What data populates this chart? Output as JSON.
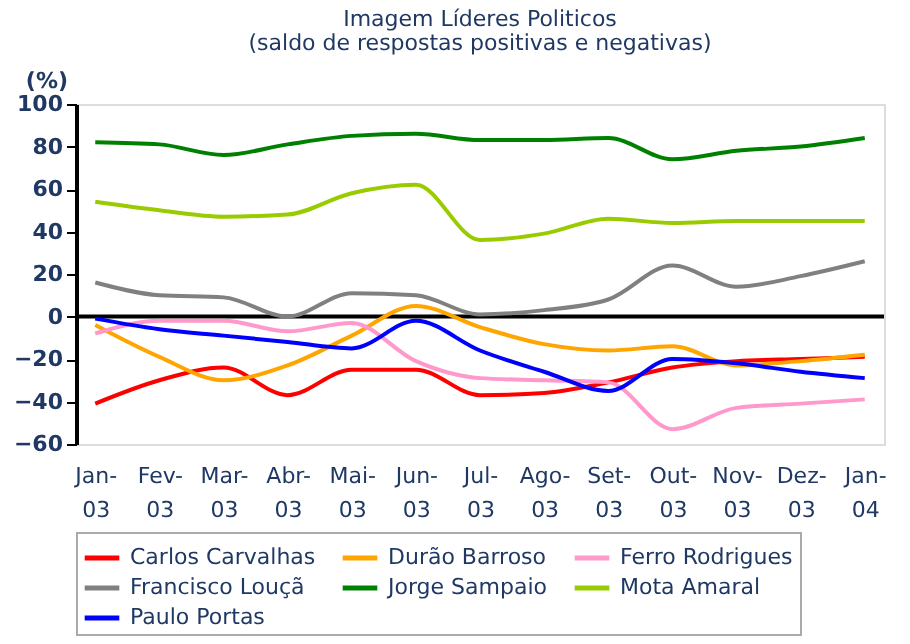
{
  "chart_data": {
    "type": "line",
    "title": "Imagem Líderes Politicos",
    "subtitle": "(saldo de respostas positivas e negativas)",
    "ylabel": "(%)",
    "categories": [
      "Jan-03",
      "Fev-03",
      "Mar-03",
      "Abr-03",
      "Mai-03",
      "Jun-03",
      "Jul-03",
      "Ago-03",
      "Set-03",
      "Out-03",
      "Nov-03",
      "Dez-03",
      "Jan-04"
    ],
    "series": [
      {
        "name": "Carlos Carvalhas",
        "color": "#ff0000",
        "values": [
          -41,
          -30,
          -24,
          -37,
          -25,
          -25,
          -37,
          -36,
          -31,
          -24,
          -21,
          -20,
          -19
        ]
      },
      {
        "name": "Durão Barroso",
        "color": "#ffa500",
        "values": [
          -4,
          -19,
          -30,
          -23,
          -9,
          5,
          -5,
          -13,
          -16,
          -14,
          -23,
          -21,
          -18
        ]
      },
      {
        "name": "Ferro Rodrigues",
        "color": "#ff99cc",
        "values": [
          -8,
          -2,
          -2,
          -7,
          -3,
          -21,
          -29,
          -30,
          -31,
          -53,
          -43,
          -41,
          -39
        ]
      },
      {
        "name": "Francisco Louçã",
        "color": "#808080",
        "values": [
          16,
          10,
          9,
          0,
          11,
          10,
          1,
          3,
          8,
          24,
          14,
          19,
          26
        ]
      },
      {
        "name": "Jorge Sampaio",
        "color": "#008000",
        "values": [
          82,
          81,
          76,
          81,
          85,
          86,
          83,
          83,
          84,
          74,
          78,
          80,
          84
        ]
      },
      {
        "name": "Mota Amaral",
        "color": "#99cc00",
        "values": [
          54,
          50,
          47,
          48,
          58,
          62,
          36,
          39,
          46,
          44,
          45,
          45,
          45
        ]
      },
      {
        "name": "Paulo Portas",
        "color": "#0000ff",
        "values": [
          -1,
          -6,
          -9,
          -12,
          -15,
          -2,
          -16,
          -26,
          -35,
          -20,
          -22,
          -26,
          -29
        ]
      }
    ],
    "ylim": [
      -60,
      100
    ],
    "yticks": [
      -60,
      -40,
      -20,
      0,
      20,
      40,
      60,
      80,
      100
    ],
    "ref_lines": [
      {
        "axis": "y",
        "value": 0,
        "color": "#000000"
      }
    ],
    "grid": false,
    "legend": "bottom",
    "marker": "none",
    "line_style": "solid"
  }
}
